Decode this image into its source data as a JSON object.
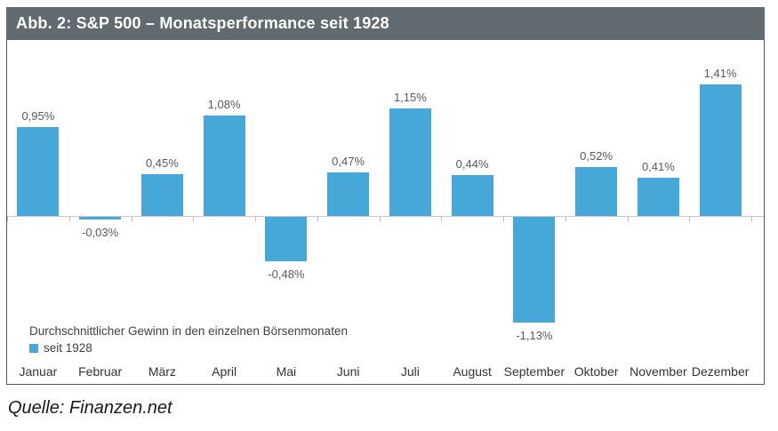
{
  "header": {
    "title": "Abb. 2: S&P 500 – Monatsperformance seit 1928",
    "bg_color": "#616a6e",
    "text_color": "#ffffff"
  },
  "chart_data": {
    "type": "bar",
    "categories": [
      "Januar",
      "Februar",
      "März",
      "April",
      "Mai",
      "Juni",
      "Juli",
      "August",
      "September",
      "Oktober",
      "November",
      "Dezember"
    ],
    "values": [
      0.95,
      -0.03,
      0.45,
      1.08,
      -0.48,
      0.47,
      1.15,
      0.44,
      -1.13,
      0.52,
      0.41,
      1.41
    ],
    "value_labels": [
      "0,95%",
      "-0,03%",
      "0,45%",
      "1,08%",
      "-0,48%",
      "0,47%",
      "1,15%",
      "0,44%",
      "-1,13%",
      "0,52%",
      "0,41%",
      "1,41%"
    ],
    "title": "Abb. 2: S&P 500 – Monatsperformance seit 1928",
    "legend_title": "Durchschnittlicher Gewinn in den einzelnen Börsenmonaten",
    "legend_series": "seit 1928",
    "bar_color": "#46a8d9",
    "axis_color": "#c9c9c9",
    "ylim": [
      -1.3,
      1.9
    ],
    "grid": false,
    "legend_position": "bottom-left",
    "xlabel": "",
    "ylabel": ""
  },
  "source": {
    "text": "Quelle: Finanzen.net"
  }
}
